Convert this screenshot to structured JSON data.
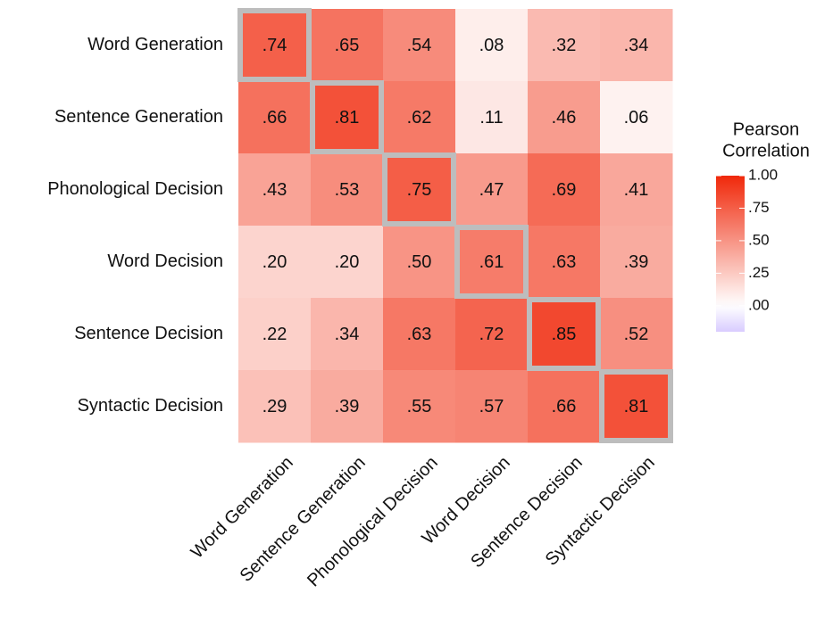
{
  "chart_data": {
    "type": "heatmap",
    "rows": [
      "Word Generation",
      "Sentence Generation",
      "Phonological Decision",
      "Word Decision",
      "Sentence Decision",
      "Syntactic Decision"
    ],
    "columns": [
      "Word Generation",
      "Sentence Generation",
      "Phonological Decision",
      "Word Decision",
      "Sentence Decision",
      "Syntactic Decision"
    ],
    "values": [
      [
        0.74,
        0.65,
        0.54,
        0.08,
        0.32,
        0.34
      ],
      [
        0.66,
        0.81,
        0.62,
        0.11,
        0.46,
        0.06
      ],
      [
        0.43,
        0.53,
        0.75,
        0.47,
        0.69,
        0.41
      ],
      [
        0.2,
        0.2,
        0.5,
        0.61,
        0.63,
        0.39
      ],
      [
        0.22,
        0.34,
        0.63,
        0.72,
        0.85,
        0.52
      ],
      [
        0.29,
        0.39,
        0.55,
        0.57,
        0.66,
        0.81
      ]
    ],
    "value_labels": [
      [
        ".74",
        ".65",
        ".54",
        ".08",
        ".32",
        ".34"
      ],
      [
        ".66",
        ".81",
        ".62",
        ".11",
        ".46",
        ".06"
      ],
      [
        ".43",
        ".53",
        ".75",
        ".47",
        ".69",
        ".41"
      ],
      [
        ".20",
        ".20",
        ".50",
        ".61",
        ".63",
        ".39"
      ],
      [
        ".22",
        ".34",
        ".63",
        ".72",
        ".85",
        ".52"
      ],
      [
        ".29",
        ".39",
        ".55",
        ".57",
        ".66",
        ".81"
      ]
    ],
    "legend_title": [
      "Pearson",
      "Correlation"
    ],
    "clim": [
      -0.2,
      1
    ],
    "cticks": [
      {
        "value": 1,
        "label": "1.00"
      },
      {
        "value": 0.75,
        "label": ".75"
      },
      {
        "value": 0.5,
        "label": ".50"
      },
      {
        "value": 0.25,
        "label": ".25"
      },
      {
        "value": 0,
        "label": ".00"
      }
    ],
    "colors": {
      "low": "#d9ccff",
      "mid": "#ffffff",
      "high": "#f0280a"
    },
    "highlight_diagonal": true,
    "highlight_color": "#bdbdbd"
  }
}
